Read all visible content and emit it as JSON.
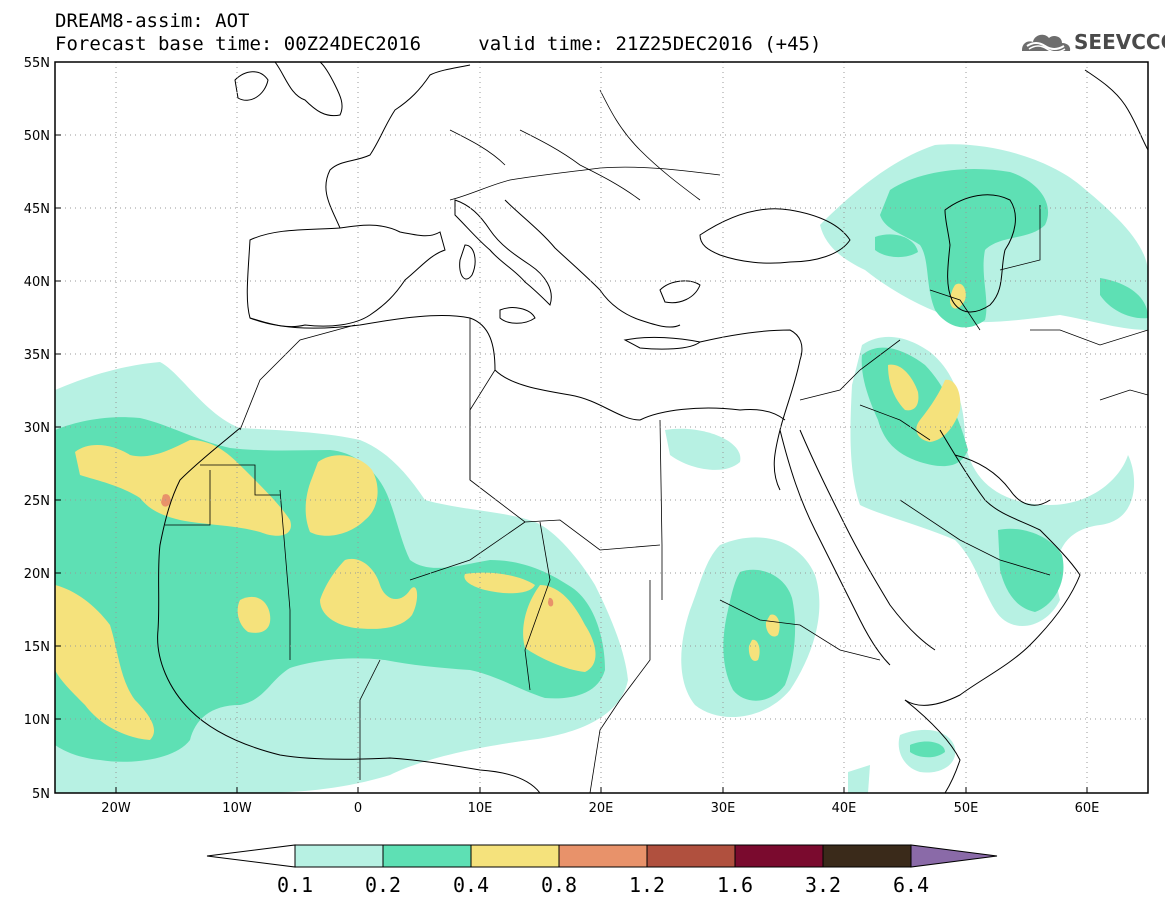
{
  "header": {
    "title": "DREAM8-assim: AOT",
    "base_label": "Forecast base time: 00Z24DEC2016",
    "valid_label": "valid time: 21Z25DEC2016 (+45)"
  },
  "logo": {
    "text": "SEEVCCC",
    "icon": "cloud-icon"
  },
  "map": {
    "projection": "lat-lon",
    "lon_range": [
      -25,
      65
    ],
    "lat_range": [
      5,
      55
    ],
    "lat_ticks": [
      "55N",
      "50N",
      "45N",
      "40N",
      "35N",
      "30N",
      "25N",
      "20N",
      "15N",
      "10N",
      "5N"
    ],
    "lon_ticks": [
      "20W",
      "10W",
      "0",
      "10E",
      "20E",
      "30E",
      "40E",
      "50E",
      "60E"
    ],
    "grid": true
  },
  "colorbar": {
    "levels": [
      "0.1",
      "0.2",
      "0.4",
      "0.8",
      "1.2",
      "1.6",
      "3.2",
      "6.4"
    ],
    "colors": [
      "#ffffff",
      "#b7f1e3",
      "#5ee0b4",
      "#f5e27c",
      "#e8926a",
      "#b0503e",
      "#7a0a2e",
      "#3a2a1a",
      "#8a6aa8"
    ]
  },
  "colors": {
    "c1": "#b7f1e3",
    "c2": "#5ee0b4",
    "c3": "#f5e27c",
    "c4": "#e8926a"
  }
}
